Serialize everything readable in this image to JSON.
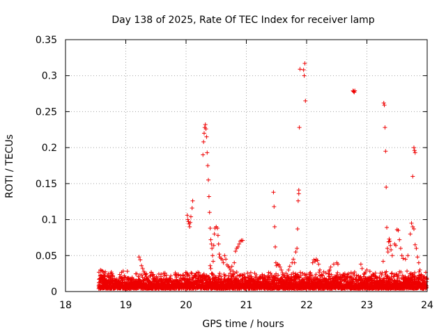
{
  "chart_data": {
    "type": "scatter",
    "title": "Day 138 of 2025, Rate Of TEC Index for receiver lamp",
    "xlabel": "GPS time / hours",
    "ylabel": "ROTI / TECUs",
    "xlim": [
      18,
      24
    ],
    "ylim": [
      0,
      0.35
    ],
    "xticks": [
      18,
      19,
      20,
      21,
      22,
      23,
      24
    ],
    "xtick_labels": [
      "18",
      "19",
      "20",
      "21",
      "22",
      "23",
      "24"
    ],
    "yticks": [
      0,
      0.05,
      0.1,
      0.15,
      0.2,
      0.25,
      0.3,
      0.35
    ],
    "ytick_labels": [
      "0",
      "0.05",
      "0.1",
      "0.15",
      "0.2",
      "0.25",
      "0.3",
      "0.35"
    ],
    "grid": true,
    "marker": "+",
    "color": "#ee0000",
    "series": [
      {
        "name": "ROTI",
        "points": [
          [
            18.58,
            0.03
          ],
          [
            18.6,
            0.029
          ],
          [
            18.62,
            0.028
          ],
          [
            18.64,
            0.026
          ],
          [
            18.66,
            0.022
          ],
          [
            18.68,
            0.016
          ],
          [
            19.22,
            0.048
          ],
          [
            19.24,
            0.044
          ],
          [
            19.26,
            0.036
          ],
          [
            19.28,
            0.032
          ],
          [
            19.3,
            0.028
          ],
          [
            20.02,
            0.106
          ],
          [
            20.03,
            0.1
          ],
          [
            20.04,
            0.097
          ],
          [
            20.05,
            0.094
          ],
          [
            20.06,
            0.09
          ],
          [
            20.07,
            0.096
          ],
          [
            20.08,
            0.104
          ],
          [
            20.1,
            0.116
          ],
          [
            20.11,
            0.126
          ],
          [
            20.28,
            0.19
          ],
          [
            20.29,
            0.208
          ],
          [
            20.3,
            0.22
          ],
          [
            20.31,
            0.228
          ],
          [
            20.32,
            0.232
          ],
          [
            20.33,
            0.226
          ],
          [
            20.34,
            0.215
          ],
          [
            20.35,
            0.193
          ],
          [
            20.36,
            0.175
          ],
          [
            20.37,
            0.155
          ],
          [
            20.38,
            0.132
          ],
          [
            20.39,
            0.11
          ],
          [
            20.4,
            0.088
          ],
          [
            20.41,
            0.072
          ],
          [
            20.42,
            0.066
          ],
          [
            20.43,
            0.06
          ],
          [
            20.44,
            0.05
          ],
          [
            20.45,
            0.042
          ],
          [
            20.4,
            0.036
          ],
          [
            20.41,
            0.032
          ],
          [
            20.46,
            0.064
          ],
          [
            20.47,
            0.08
          ],
          [
            20.48,
            0.088
          ],
          [
            20.5,
            0.09
          ],
          [
            20.52,
            0.088
          ],
          [
            20.53,
            0.078
          ],
          [
            20.54,
            0.066
          ],
          [
            20.55,
            0.052
          ],
          [
            20.56,
            0.048
          ],
          [
            20.58,
            0.046
          ],
          [
            20.6,
            0.044
          ],
          [
            20.62,
            0.04
          ],
          [
            20.64,
            0.05
          ],
          [
            20.66,
            0.045
          ],
          [
            20.68,
            0.037
          ],
          [
            20.7,
            0.035
          ],
          [
            20.72,
            0.033
          ],
          [
            20.74,
            0.03
          ],
          [
            20.76,
            0.035
          ],
          [
            20.78,
            0.028
          ],
          [
            20.8,
            0.04
          ],
          [
            20.82,
            0.056
          ],
          [
            20.84,
            0.06
          ],
          [
            20.86,
            0.062
          ],
          [
            20.88,
            0.066
          ],
          [
            20.9,
            0.07
          ],
          [
            20.92,
            0.071
          ],
          [
            20.94,
            0.071
          ],
          [
            21.45,
            0.138
          ],
          [
            21.46,
            0.118
          ],
          [
            21.47,
            0.09
          ],
          [
            21.48,
            0.062
          ],
          [
            21.49,
            0.04
          ],
          [
            21.5,
            0.036
          ],
          [
            21.52,
            0.038
          ],
          [
            21.54,
            0.037
          ],
          [
            21.56,
            0.034
          ],
          [
            21.58,
            0.03
          ],
          [
            21.6,
            0.026
          ],
          [
            21.62,
            0.022
          ],
          [
            21.8,
            0.04
          ],
          [
            21.82,
            0.055
          ],
          [
            21.84,
            0.06
          ],
          [
            21.85,
            0.087
          ],
          [
            21.86,
            0.126
          ],
          [
            21.87,
            0.136
          ],
          [
            21.87,
            0.141
          ],
          [
            21.88,
            0.228
          ],
          [
            21.89,
            0.309
          ],
          [
            21.95,
            0.308
          ],
          [
            21.97,
            0.317
          ],
          [
            21.96,
            0.3
          ],
          [
            21.98,
            0.265
          ],
          [
            21.7,
            0.03
          ],
          [
            21.72,
            0.035
          ],
          [
            21.76,
            0.04
          ],
          [
            21.78,
            0.045
          ],
          [
            22.1,
            0.04
          ],
          [
            22.12,
            0.044
          ],
          [
            22.14,
            0.042
          ],
          [
            22.16,
            0.045
          ],
          [
            22.18,
            0.043
          ],
          [
            22.2,
            0.038
          ],
          [
            22.22,
            0.03
          ],
          [
            22.36,
            0.025
          ],
          [
            22.38,
            0.03
          ],
          [
            22.4,
            0.034
          ],
          [
            22.45,
            0.038
          ],
          [
            22.5,
            0.04
          ],
          [
            22.52,
            0.038
          ],
          [
            22.77,
            0.279
          ],
          [
            22.78,
            0.278
          ],
          [
            22.79,
            0.277
          ],
          [
            22.8,
            0.279
          ],
          [
            22.9,
            0.038
          ],
          [
            22.92,
            0.032
          ],
          [
            22.96,
            0.025
          ],
          [
            23.0,
            0.03
          ],
          [
            23.05,
            0.028
          ],
          [
            23.28,
            0.262
          ],
          [
            23.29,
            0.259
          ],
          [
            23.3,
            0.228
          ],
          [
            23.31,
            0.195
          ],
          [
            23.32,
            0.145
          ],
          [
            23.33,
            0.089
          ],
          [
            23.34,
            0.06
          ],
          [
            23.35,
            0.055
          ],
          [
            23.36,
            0.069
          ],
          [
            23.37,
            0.073
          ],
          [
            23.38,
            0.07
          ],
          [
            23.39,
            0.064
          ],
          [
            23.4,
            0.058
          ],
          [
            23.42,
            0.05
          ],
          [
            23.46,
            0.066
          ],
          [
            23.48,
            0.064
          ],
          [
            23.5,
            0.086
          ],
          [
            23.52,
            0.085
          ],
          [
            23.54,
            0.072
          ],
          [
            23.56,
            0.06
          ],
          [
            23.58,
            0.05
          ],
          [
            23.6,
            0.046
          ],
          [
            23.64,
            0.045
          ],
          [
            23.68,
            0.05
          ],
          [
            23.72,
            0.08
          ],
          [
            23.74,
            0.095
          ],
          [
            23.76,
            0.09
          ],
          [
            23.78,
            0.087
          ],
          [
            23.8,
            0.065
          ],
          [
            23.82,
            0.06
          ],
          [
            23.84,
            0.048
          ],
          [
            23.86,
            0.04
          ],
          [
            23.88,
            0.03
          ],
          [
            23.9,
            0.02
          ],
          [
            23.76,
            0.16
          ],
          [
            23.78,
            0.2
          ],
          [
            23.79,
            0.196
          ],
          [
            23.8,
            0.193
          ],
          [
            23.27,
            0.042
          ]
        ],
        "baseline_band": {
          "x_range": [
            18.55,
            23.99
          ],
          "y_range": [
            0.0,
            0.025
          ]
        }
      }
    ]
  }
}
